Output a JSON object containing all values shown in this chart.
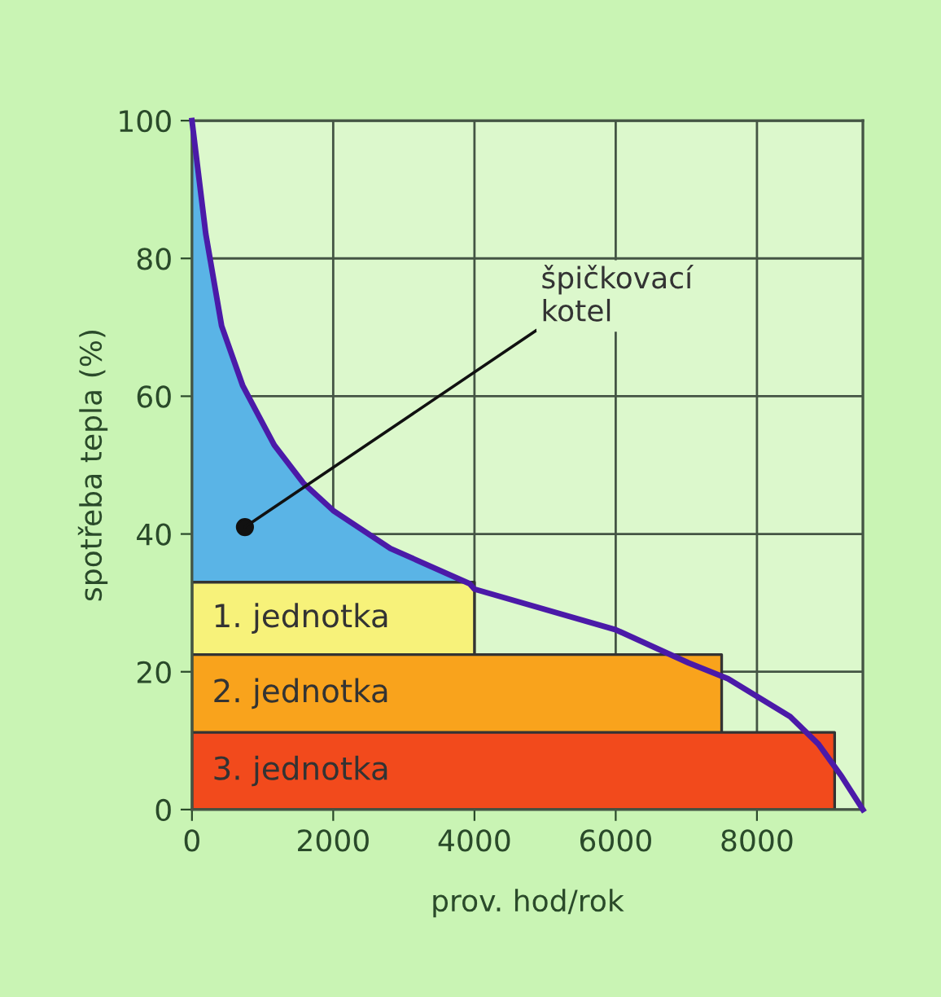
{
  "chart_data": {
    "type": "line",
    "xlabel": "prov. hod/rok",
    "ylabel": "spotřeba tepla (%)",
    "xlim": [
      0,
      9500
    ],
    "ylim": [
      0,
      100
    ],
    "xticks": [
      0,
      2000,
      4000,
      6000,
      8000
    ],
    "yticks": [
      0,
      20,
      40,
      60,
      80,
      100
    ],
    "grid": true,
    "marker": "none",
    "line_style": "solid",
    "annotations": [
      {
        "text": "špičkovací\nkotel",
        "x": 750,
        "y": 41
      }
    ],
    "series": [
      {
        "type": "area",
        "color": "#5ab4e6",
        "x": [
          0,
          195,
          420,
          720,
          1165,
          1576,
          2000,
          2810,
          3930
        ],
        "values": [
          100,
          83.6,
          70.2,
          61.5,
          52.9,
          47.4,
          43.4,
          37.9,
          32.8
        ]
      },
      {
        "type": "area",
        "name": "1. jednotka",
        "color": "#f7f27a",
        "x": [
          0,
          4000
        ],
        "values": [
          33,
          33
        ]
      },
      {
        "type": "area",
        "name": "2. jednotka",
        "color": "#f9a31c",
        "x": [
          0,
          7500
        ],
        "values": [
          22.5,
          22.5
        ]
      },
      {
        "type": "area",
        "name": "3. jednotka",
        "color": "#f24a1c",
        "x": [
          0,
          9100
        ],
        "values": [
          11.2,
          11.2
        ]
      },
      {
        "color": "#4b1aa8",
        "x": [
          0,
          195,
          420,
          720,
          1165,
          1576,
          2000,
          2810,
          3930,
          4000,
          6000,
          7030,
          7590,
          8470,
          8870,
          9200,
          9500
        ],
        "values": [
          100,
          83.6,
          70.2,
          61.5,
          52.9,
          47.4,
          43.4,
          37.9,
          32.8,
          32.0,
          26.1,
          21.3,
          19.0,
          13.5,
          9.5,
          4.8,
          0
        ]
      }
    ]
  }
}
